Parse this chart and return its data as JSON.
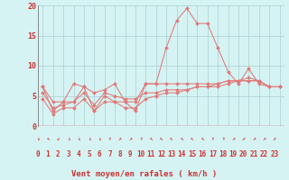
{
  "xlabel": "Vent moyen/en rafales ( km/h )",
  "x": [
    0,
    1,
    2,
    3,
    4,
    5,
    6,
    7,
    8,
    9,
    10,
    11,
    12,
    13,
    14,
    15,
    16,
    17,
    18,
    19,
    20,
    21,
    22,
    23
  ],
  "line1": [
    6.5,
    2.5,
    4.0,
    4.0,
    6.5,
    2.5,
    5.0,
    4.0,
    4.0,
    2.5,
    7.0,
    7.0,
    13.0,
    17.5,
    19.5,
    17.0,
    17.0,
    13.0,
    9.0,
    7.0,
    9.5,
    7.0,
    6.5,
    6.5
  ],
  "line2": [
    6.5,
    4.0,
    4.0,
    7.0,
    6.5,
    5.5,
    6.0,
    7.0,
    4.0,
    4.0,
    7.0,
    7.0,
    7.0,
    7.0,
    7.0,
    7.0,
    7.0,
    7.0,
    7.5,
    7.5,
    7.5,
    7.5,
    6.5,
    6.5
  ],
  "line3": [
    5.5,
    3.0,
    3.5,
    4.0,
    5.5,
    3.5,
    5.5,
    5.0,
    4.5,
    4.5,
    5.5,
    5.5,
    6.0,
    6.0,
    6.0,
    6.5,
    6.5,
    6.5,
    7.0,
    7.5,
    7.5,
    7.5,
    6.5,
    6.5
  ],
  "line4": [
    4.5,
    2.0,
    3.0,
    3.0,
    4.5,
    2.5,
    4.0,
    4.0,
    3.0,
    3.0,
    4.5,
    5.0,
    5.5,
    5.5,
    6.0,
    6.5,
    6.5,
    7.0,
    7.5,
    7.5,
    8.0,
    7.5,
    6.5,
    6.5
  ],
  "line_color": "#e07878",
  "bg_color": "#d6f3f3",
  "grid_color": "#aacece",
  "axis_color": "#cc3333",
  "ylim": [
    0,
    20
  ],
  "yticks": [
    0,
    5,
    10,
    15,
    20
  ],
  "arrows": [
    "↓",
    "↖",
    "↙",
    "↓",
    "↓",
    "↓",
    "↓",
    "↑",
    "↗",
    "↗",
    "↑",
    "↖",
    "↖",
    "↖",
    "↖",
    "↖",
    "↖",
    "↑",
    "↑",
    "↗",
    "↗",
    "↗",
    "↗",
    "↗"
  ],
  "tick_fontsize": 5.5,
  "label_fontsize": 6.5
}
